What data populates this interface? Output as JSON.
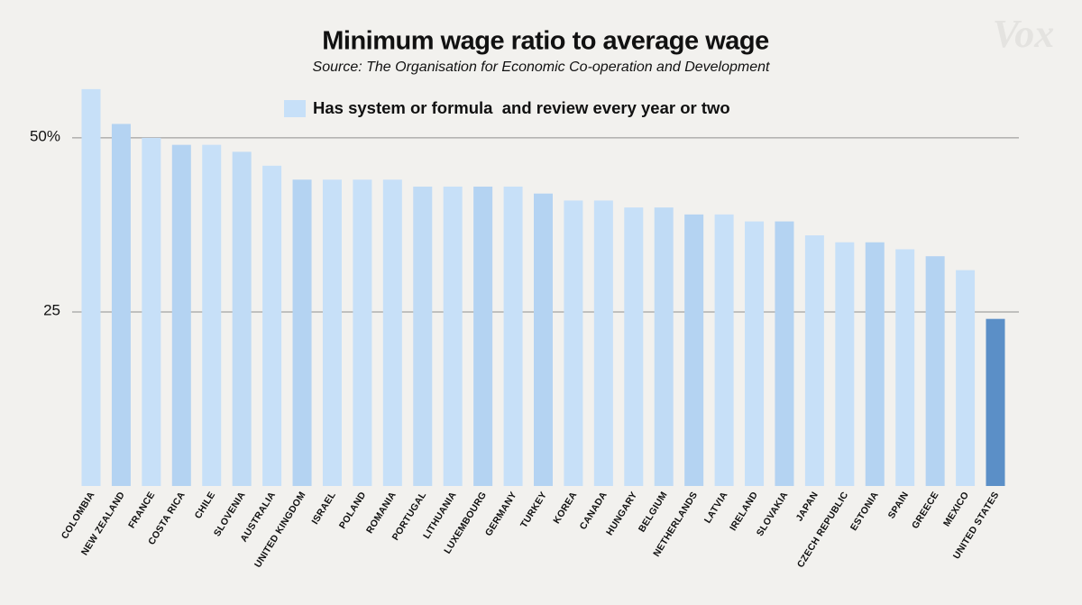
{
  "chart_data": {
    "type": "bar",
    "title": "Minimum wage ratio to average wage",
    "subtitle": "Source: The Organisation for Economic Co-operation and Development",
    "logo": "Vox",
    "categories": [
      "COLOMBIA",
      "NEW ZEALAND",
      "FRANCE",
      "COSTA RICA",
      "CHILE",
      "SLOVENIA",
      "AUSTRALIA",
      "UNITED KINGDOM",
      "ISRAEL",
      "POLAND",
      "ROMANIA",
      "PORTUGAL",
      "LITHUANIA",
      "LUXEMBOURG",
      "GERMANY",
      "TURKEY",
      "KOREA",
      "CANADA",
      "HUNGARY",
      "BELGIUM",
      "NETHERLANDS",
      "LATVIA",
      "IRELAND",
      "SLOVAKIA",
      "JAPAN",
      "CZECH REPUBLIC",
      "ESTONIA",
      "SPAIN",
      "GREECE",
      "MEXICO",
      "UNITED STATES"
    ],
    "series": [
      {
        "name": "Has system or formula  and review every year or two",
        "color": "#c7e0f8",
        "values": [
          57,
          52,
          50,
          49,
          49,
          48,
          46,
          44,
          44,
          44,
          44,
          43,
          43,
          43,
          43,
          42,
          41,
          41,
          40,
          40,
          39,
          39,
          38,
          38,
          36,
          35,
          35,
          34,
          33,
          31,
          24
        ],
        "colors": [
          "#c7e0f8",
          "#b4d3f2",
          "#c7e0f8",
          "#b4d3f2",
          "#c7e0f8",
          "#c0dbf5",
          "#c7e0f8",
          "#b4d3f2",
          "#c7e0f8",
          "#c7e0f8",
          "#c7e0f8",
          "#c0dbf5",
          "#c7e0f8",
          "#b4d3f2",
          "#c7e0f8",
          "#b4d3f2",
          "#c7e0f8",
          "#c7e0f8",
          "#c7e0f8",
          "#c0dbf5",
          "#b4d3f2",
          "#c7e0f8",
          "#c7e0f8",
          "#b4d3f2",
          "#c7e0f8",
          "#c7e0f8",
          "#b4d3f2",
          "#c7e0f8",
          "#b4d3f2",
          "#c7e0f8",
          "#5b8fc7"
        ]
      }
    ],
    "ylim": [
      0,
      57.5
    ],
    "yticks": [
      {
        "value": 25,
        "label": "25"
      },
      {
        "value": 50,
        "label": "50%"
      }
    ],
    "grid": true
  }
}
